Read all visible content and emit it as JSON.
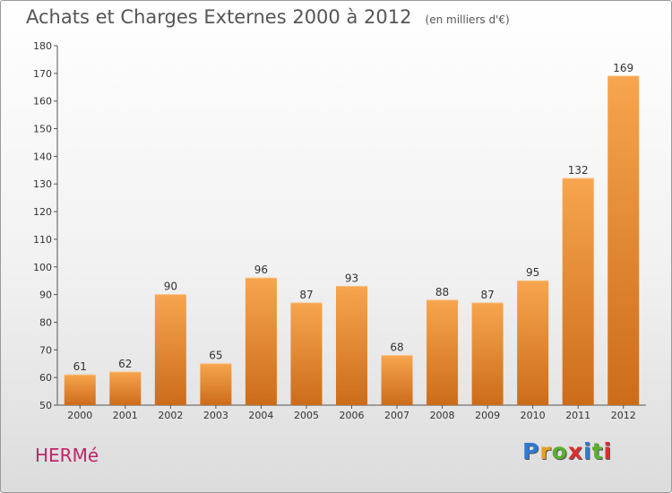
{
  "header": {
    "title": "Achats et Charges Externes 2000 à 2012",
    "unit": "(en milliers d'€)"
  },
  "commune": "HERMé",
  "logo": {
    "text": "Proxiti",
    "colors": [
      "#2e7bd6",
      "#e8a020",
      "#59b030",
      "#d83030",
      "#2e7bd6",
      "#59b030",
      "#d83030"
    ]
  },
  "colors": {
    "bar_light": "#f7a54e",
    "bar_dark": "#cc6c1a",
    "commune": "#c0256a"
  },
  "chart_data": {
    "type": "bar",
    "title": "Achats et Charges Externes 2000 à 2012",
    "subtitle": "(en milliers d'€)",
    "categories": [
      "2000",
      "2001",
      "2002",
      "2003",
      "2004",
      "2005",
      "2006",
      "2007",
      "2008",
      "2009",
      "2010",
      "2011",
      "2012"
    ],
    "values": [
      61,
      62,
      90,
      65,
      96,
      87,
      93,
      68,
      88,
      87,
      95,
      132,
      169
    ],
    "ylim": [
      50,
      180
    ],
    "yticks": [
      50,
      60,
      70,
      80,
      90,
      100,
      110,
      120,
      130,
      140,
      150,
      160,
      170,
      180
    ],
    "grid": false,
    "xlabel": "",
    "ylabel": ""
  }
}
